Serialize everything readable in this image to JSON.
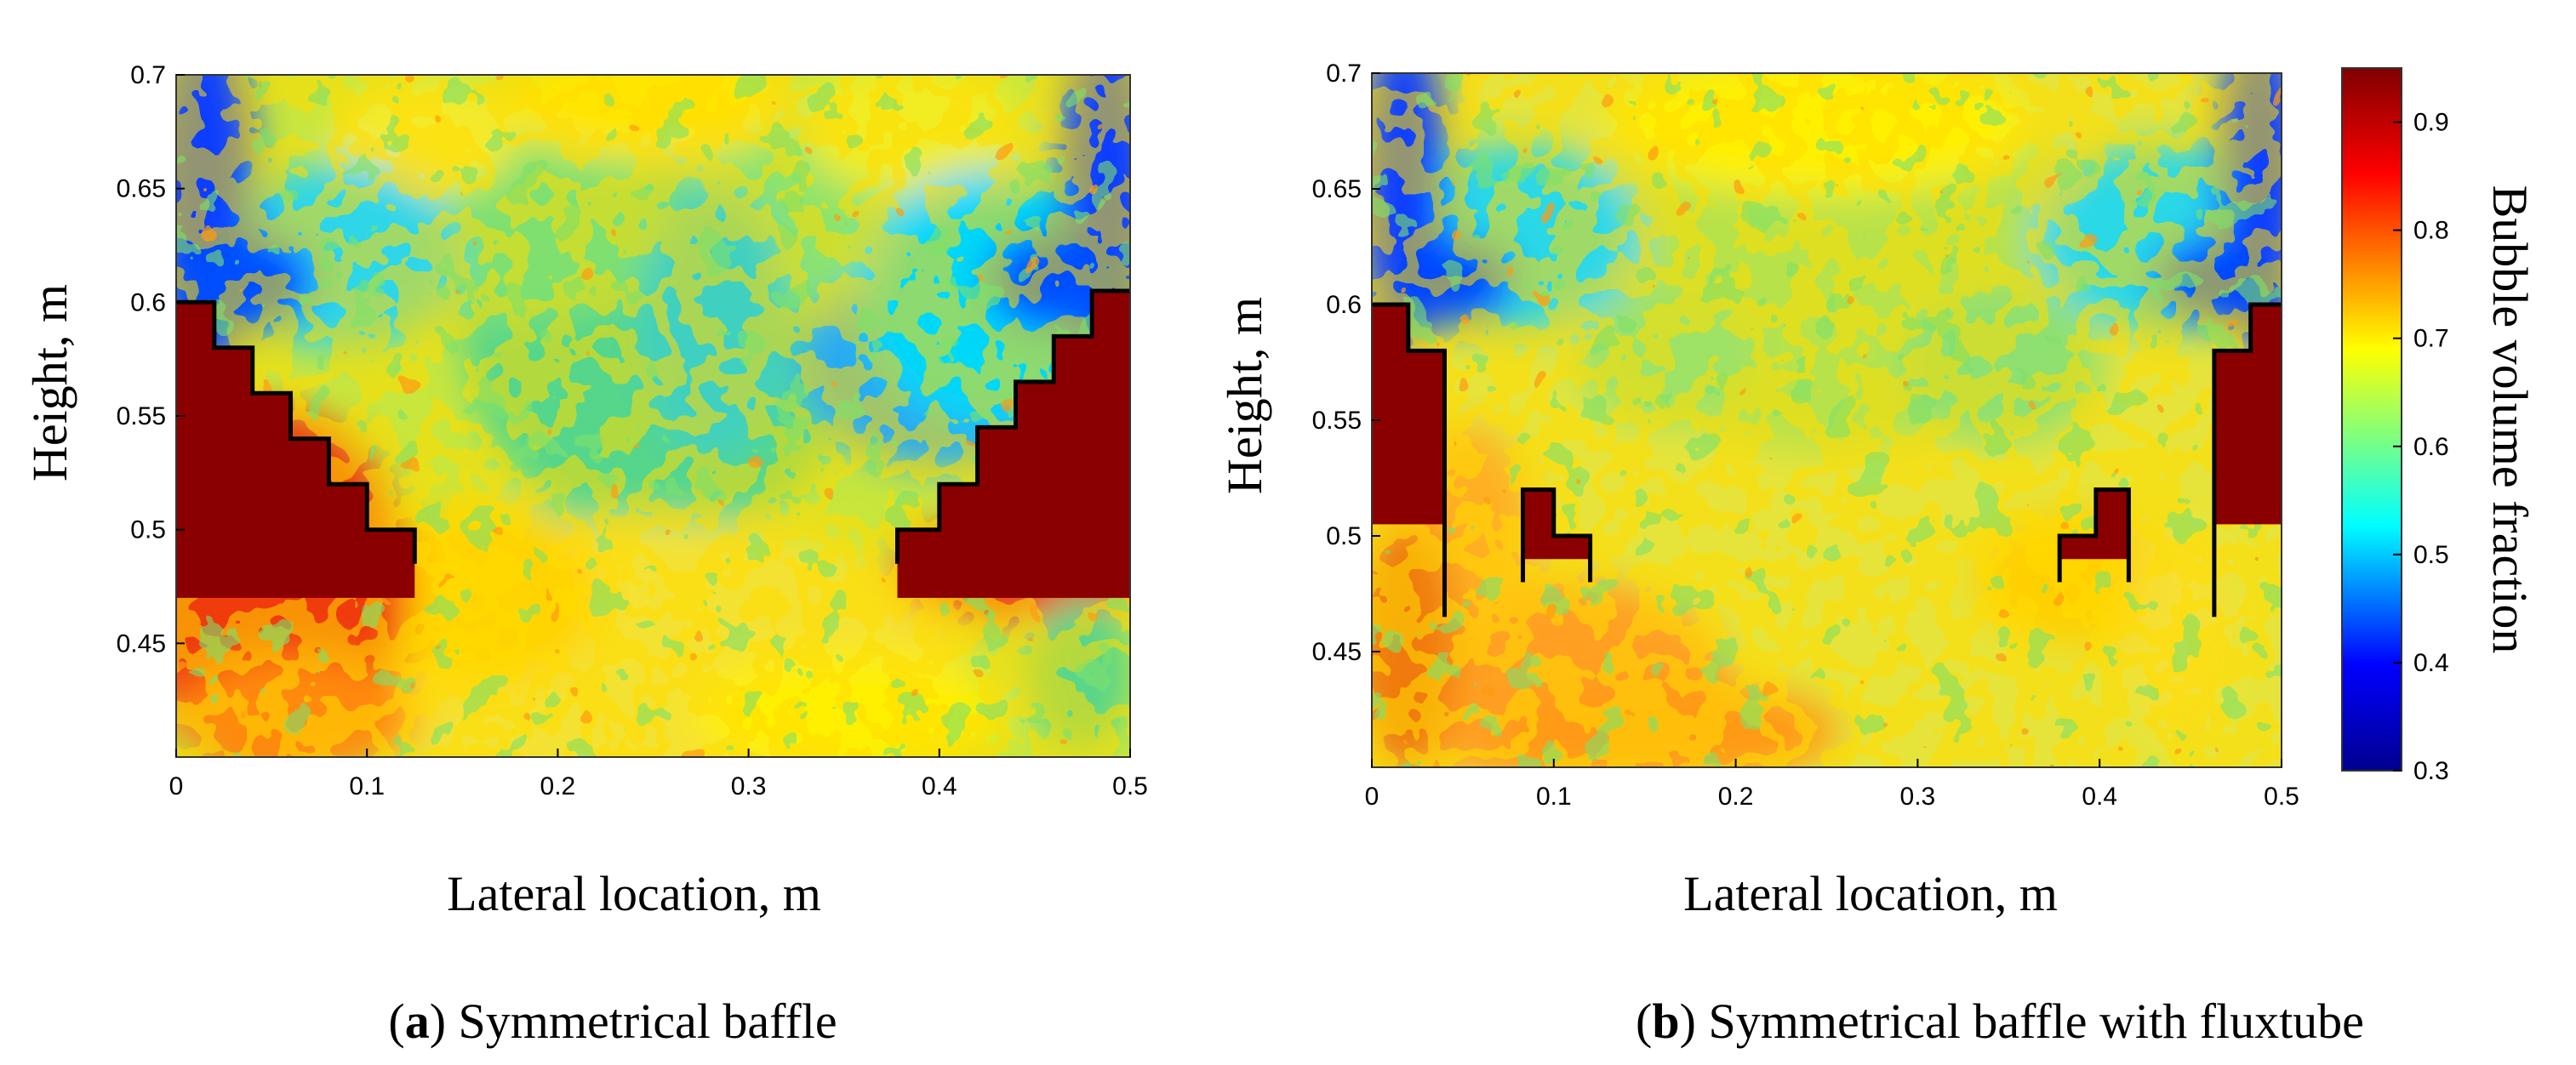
{
  "chart_data": [
    {
      "type": "heatmap",
      "panel_letter": "a",
      "caption": "Symmetrical baffle",
      "xlabel": "Lateral location, m",
      "ylabel": "Height, m",
      "xlim": [
        0,
        0.5
      ],
      "ylim": [
        0.4,
        0.7
      ],
      "xticks": [
        "0",
        "0.1",
        "0.2",
        "0.3",
        "0.4",
        "0.5"
      ],
      "yticks": [
        "0.45",
        "0.5",
        "0.55",
        "0.6",
        "0.65",
        "0.7"
      ],
      "baffle": "stepped",
      "baffle_outline": {
        "left": [
          [
            0,
            0.6
          ],
          [
            0.02,
            0.6
          ],
          [
            0.02,
            0.58
          ],
          [
            0.04,
            0.58
          ],
          [
            0.04,
            0.56
          ],
          [
            0.06,
            0.56
          ],
          [
            0.06,
            0.54
          ],
          [
            0.08,
            0.54
          ],
          [
            0.08,
            0.52
          ],
          [
            0.1,
            0.52
          ],
          [
            0.1,
            0.5
          ],
          [
            0.125,
            0.5
          ],
          [
            0.125,
            0.485
          ]
        ],
        "right": [
          [
            0.5,
            0.605
          ],
          [
            0.48,
            0.605
          ],
          [
            0.48,
            0.585
          ],
          [
            0.46,
            0.585
          ],
          [
            0.46,
            0.565
          ],
          [
            0.44,
            0.565
          ],
          [
            0.44,
            0.545
          ],
          [
            0.42,
            0.545
          ],
          [
            0.42,
            0.52
          ],
          [
            0.4,
            0.52
          ],
          [
            0.4,
            0.5
          ],
          [
            0.378,
            0.5
          ],
          [
            0.378,
            0.485
          ]
        ]
      }
    },
    {
      "type": "heatmap",
      "panel_letter": "b",
      "caption": "Symmetrical baffle with fluxtube",
      "xlabel": "Lateral location, m",
      "ylabel": "Height, m",
      "xlim": [
        0,
        0.5
      ],
      "ylim": [
        0.4,
        0.7
      ],
      "xticks": [
        "0",
        "0.1",
        "0.2",
        "0.3",
        "0.4",
        "0.5"
      ],
      "yticks": [
        "0.45",
        "0.5",
        "0.55",
        "0.6",
        "0.65",
        "0.7"
      ],
      "baffle": "stepped with fluxtubes",
      "baffle_outline": {
        "left_wall": [
          [
            0,
            0.6
          ],
          [
            0.02,
            0.6
          ],
          [
            0.02,
            0.58
          ],
          [
            0.04,
            0.58
          ],
          [
            0.04,
            0.465
          ]
        ],
        "left_tube": [
          [
            0.083,
            0.48
          ],
          [
            0.083,
            0.52
          ],
          [
            0.1,
            0.52
          ],
          [
            0.1,
            0.5
          ],
          [
            0.12,
            0.5
          ],
          [
            0.12,
            0.48
          ]
        ],
        "right_tube": [
          [
            0.378,
            0.48
          ],
          [
            0.378,
            0.5
          ],
          [
            0.398,
            0.5
          ],
          [
            0.398,
            0.52
          ],
          [
            0.416,
            0.52
          ],
          [
            0.416,
            0.48
          ]
        ],
        "right_wall": [
          [
            0.5,
            0.6
          ],
          [
            0.483,
            0.6
          ],
          [
            0.483,
            0.58
          ],
          [
            0.463,
            0.58
          ],
          [
            0.463,
            0.465
          ]
        ]
      }
    }
  ],
  "colorbar": {
    "label": "Bubble volume fraction",
    "range": [
      0.3,
      0.95
    ],
    "ticks": [
      "0.3",
      "0.4",
      "0.5",
      "0.6",
      "0.7",
      "0.8",
      "0.9"
    ],
    "colormap": "jet",
    "colors": [
      "#00008f",
      "#0000ff",
      "#00ffff",
      "#ffff00",
      "#ff0000",
      "#800000"
    ]
  }
}
